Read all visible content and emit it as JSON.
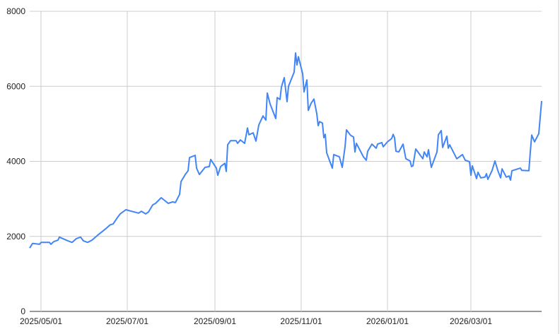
{
  "chart_data": {
    "type": "line",
    "title": "",
    "xlabel": "",
    "ylabel": "",
    "xlim": [
      "2025-04-23",
      "2026-04-20"
    ],
    "ylim": [
      0,
      8000
    ],
    "grid": true,
    "legend": "none",
    "line_color": "#4285f4",
    "grid_color": "#cccccc",
    "y_ticks": [
      0,
      2000,
      4000,
      6000,
      8000
    ],
    "y_tick_labels": [
      "0",
      "2000",
      "4000",
      "6000",
      "8000"
    ],
    "x_ticks": [
      "2025-05-01",
      "2025-07-01",
      "2025-09-01",
      "2025-11-01",
      "2026-01-01",
      "2026-03-01"
    ],
    "x_tick_labels": [
      "2025/05/01",
      "2025/07/01",
      "2025/09/01",
      "2025/11/01",
      "2026/01/01",
      "2026/03/01"
    ],
    "series": [
      {
        "points": [
          [
            "2025-04-23",
            1690
          ],
          [
            "2025-04-25",
            1810
          ],
          [
            "2025-04-30",
            1790
          ],
          [
            "2025-05-01",
            1840
          ],
          [
            "2025-05-07",
            1840
          ],
          [
            "2025-05-08",
            1790
          ],
          [
            "2025-05-10",
            1860
          ],
          [
            "2025-05-13",
            1900
          ],
          [
            "2025-05-14",
            1980
          ],
          [
            "2025-05-20",
            1880
          ],
          [
            "2025-05-23",
            1840
          ],
          [
            "2025-05-26",
            1940
          ],
          [
            "2025-05-29",
            1980
          ],
          [
            "2025-05-31",
            1880
          ],
          [
            "2025-06-03",
            1840
          ],
          [
            "2025-06-06",
            1900
          ],
          [
            "2025-06-10",
            2030
          ],
          [
            "2025-06-15",
            2180
          ],
          [
            "2025-06-19",
            2310
          ],
          [
            "2025-06-21",
            2330
          ],
          [
            "2025-06-24",
            2500
          ],
          [
            "2025-06-26",
            2600
          ],
          [
            "2025-06-30",
            2710
          ],
          [
            "2025-07-04",
            2670
          ],
          [
            "2025-07-09",
            2620
          ],
          [
            "2025-07-11",
            2670
          ],
          [
            "2025-07-14",
            2600
          ],
          [
            "2025-07-16",
            2650
          ],
          [
            "2025-07-19",
            2840
          ],
          [
            "2025-07-21",
            2880
          ],
          [
            "2025-07-25",
            3030
          ],
          [
            "2025-07-30",
            2880
          ],
          [
            "2025-08-02",
            2920
          ],
          [
            "2025-08-04",
            2900
          ],
          [
            "2025-08-07",
            3120
          ],
          [
            "2025-08-08",
            3460
          ],
          [
            "2025-08-11",
            3650
          ],
          [
            "2025-08-13",
            3750
          ],
          [
            "2025-08-14",
            4100
          ],
          [
            "2025-08-18",
            4160
          ],
          [
            "2025-08-19",
            3820
          ],
          [
            "2025-08-21",
            3650
          ],
          [
            "2025-08-25",
            3840
          ],
          [
            "2025-08-28",
            3860
          ],
          [
            "2025-08-29",
            4050
          ],
          [
            "2025-09-02",
            3820
          ],
          [
            "2025-09-03",
            3630
          ],
          [
            "2025-09-05",
            3860
          ],
          [
            "2025-09-08",
            3950
          ],
          [
            "2025-09-09",
            3730
          ],
          [
            "2025-09-10",
            4440
          ],
          [
            "2025-09-12",
            4550
          ],
          [
            "2025-09-16",
            4550
          ],
          [
            "2025-09-17",
            4480
          ],
          [
            "2025-09-19",
            4570
          ],
          [
            "2025-09-22",
            4480
          ],
          [
            "2025-09-24",
            4890
          ],
          [
            "2025-09-25",
            4710
          ],
          [
            "2025-09-28",
            4760
          ],
          [
            "2025-09-30",
            4540
          ],
          [
            "2025-10-02",
            4970
          ],
          [
            "2025-10-05",
            5210
          ],
          [
            "2025-10-07",
            5100
          ],
          [
            "2025-10-08",
            5820
          ],
          [
            "2025-10-10",
            5530
          ],
          [
            "2025-10-14",
            5140
          ],
          [
            "2025-10-15",
            5700
          ],
          [
            "2025-10-17",
            5650
          ],
          [
            "2025-10-18",
            5980
          ],
          [
            "2025-10-20",
            6230
          ],
          [
            "2025-10-22",
            5590
          ],
          [
            "2025-10-23",
            6000
          ],
          [
            "2025-10-27",
            6380
          ],
          [
            "2025-10-28",
            6890
          ],
          [
            "2025-10-29",
            6570
          ],
          [
            "2025-10-30",
            6790
          ],
          [
            "2025-11-02",
            6340
          ],
          [
            "2025-11-03",
            5850
          ],
          [
            "2025-11-05",
            6170
          ],
          [
            "2025-11-06",
            5360
          ],
          [
            "2025-11-08",
            5550
          ],
          [
            "2025-11-10",
            5660
          ],
          [
            "2025-11-12",
            5270
          ],
          [
            "2025-11-13",
            4950
          ],
          [
            "2025-11-14",
            5060
          ],
          [
            "2025-11-16",
            5020
          ],
          [
            "2025-11-17",
            4630
          ],
          [
            "2025-11-18",
            4720
          ],
          [
            "2025-11-19",
            4230
          ],
          [
            "2025-11-23",
            3820
          ],
          [
            "2025-11-24",
            4180
          ],
          [
            "2025-11-28",
            4120
          ],
          [
            "2025-11-30",
            3840
          ],
          [
            "2025-12-02",
            4390
          ],
          [
            "2025-12-03",
            4840
          ],
          [
            "2025-12-06",
            4690
          ],
          [
            "2025-12-08",
            4650
          ],
          [
            "2025-12-09",
            4250
          ],
          [
            "2025-12-10",
            4480
          ],
          [
            "2025-12-15",
            4120
          ],
          [
            "2025-12-17",
            4030
          ],
          [
            "2025-12-18",
            4270
          ],
          [
            "2025-12-21",
            4460
          ],
          [
            "2025-12-24",
            4350
          ],
          [
            "2025-12-25",
            4460
          ],
          [
            "2025-12-28",
            4500
          ],
          [
            "2025-12-29",
            4390
          ],
          [
            "2026-01-01",
            4520
          ],
          [
            "2026-01-04",
            4610
          ],
          [
            "2026-01-05",
            4720
          ],
          [
            "2026-01-06",
            4630
          ],
          [
            "2026-01-07",
            4270
          ],
          [
            "2026-01-09",
            4250
          ],
          [
            "2026-01-12",
            4460
          ],
          [
            "2026-01-14",
            4070
          ],
          [
            "2026-01-17",
            4010
          ],
          [
            "2026-01-18",
            3860
          ],
          [
            "2026-01-19",
            3880
          ],
          [
            "2026-01-21",
            4330
          ],
          [
            "2026-01-26",
            4070
          ],
          [
            "2026-01-27",
            4250
          ],
          [
            "2026-01-29",
            4120
          ],
          [
            "2026-01-30",
            4310
          ],
          [
            "2026-02-01",
            3840
          ],
          [
            "2026-02-05",
            4250
          ],
          [
            "2026-02-06",
            4710
          ],
          [
            "2026-02-08",
            4820
          ],
          [
            "2026-02-09",
            4370
          ],
          [
            "2026-02-12",
            4670
          ],
          [
            "2026-02-13",
            4350
          ],
          [
            "2026-02-14",
            4440
          ],
          [
            "2026-02-19",
            4070
          ],
          [
            "2026-02-23",
            4180
          ],
          [
            "2026-02-25",
            4030
          ],
          [
            "2026-02-28",
            3990
          ],
          [
            "2026-03-01",
            3630
          ],
          [
            "2026-03-02",
            3880
          ],
          [
            "2026-03-05",
            3540
          ],
          [
            "2026-03-06",
            3710
          ],
          [
            "2026-03-08",
            3560
          ],
          [
            "2026-03-11",
            3580
          ],
          [
            "2026-03-12",
            3670
          ],
          [
            "2026-03-13",
            3520
          ],
          [
            "2026-03-16",
            3760
          ],
          [
            "2026-03-18",
            4010
          ],
          [
            "2026-03-20",
            3760
          ],
          [
            "2026-03-22",
            3560
          ],
          [
            "2026-03-23",
            3800
          ],
          [
            "2026-03-26",
            3580
          ],
          [
            "2026-03-28",
            3610
          ],
          [
            "2026-03-29",
            3500
          ],
          [
            "2026-03-30",
            3750
          ],
          [
            "2026-04-05",
            3820
          ],
          [
            "2026-04-06",
            3760
          ],
          [
            "2026-04-11",
            3750
          ],
          [
            "2026-04-12",
            4250
          ],
          [
            "2026-04-13",
            4700
          ],
          [
            "2026-04-15",
            4520
          ],
          [
            "2026-04-18",
            4740
          ],
          [
            "2026-04-20",
            5610
          ]
        ]
      }
    ]
  }
}
